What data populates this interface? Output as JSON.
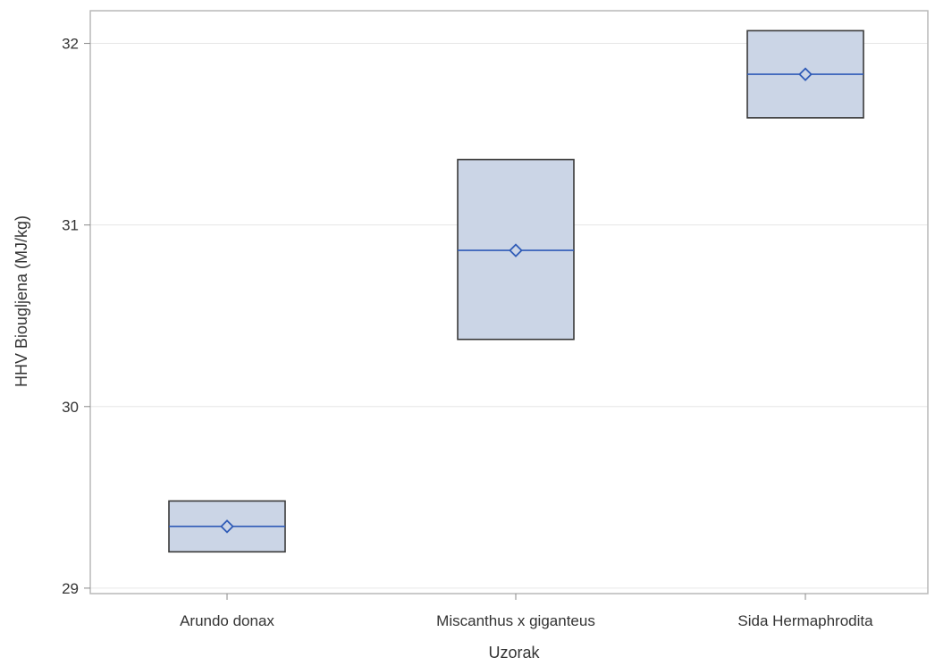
{
  "chart_data": {
    "type": "box",
    "xlabel": "Uzorak",
    "ylabel": "HHV Biougljena (MJ/kg)",
    "ylim": [
      28.97,
      32.18
    ],
    "yticks": [
      29,
      30,
      31,
      32
    ],
    "grid": true,
    "categories": [
      "Arundo donax",
      "Miscanthus x giganteus",
      "Sida Hermaphrodita"
    ],
    "boxes": [
      {
        "category": "Arundo donax",
        "q1": 29.2,
        "median": 29.34,
        "q3": 29.48,
        "mean": 29.34
      },
      {
        "category": "Miscanthus x giganteus",
        "q1": 30.37,
        "median": 30.86,
        "q3": 31.36,
        "mean": 30.86
      },
      {
        "category": "Sida Hermaphrodita",
        "q1": 31.59,
        "median": 31.83,
        "q3": 32.07,
        "mean": 31.83
      }
    ],
    "colors": {
      "box_fill": "#cbd5e6",
      "box_edge": "#3a3a3a",
      "median_line": "#2f5bb7",
      "mean_marker": "#2f5bb7",
      "grid": "#e6e6e6",
      "frame": "#b9b9b9"
    }
  }
}
